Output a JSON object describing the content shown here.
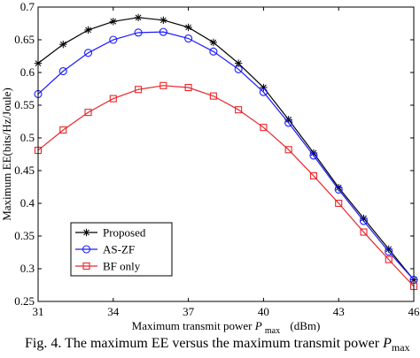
{
  "caption": {
    "prefix": "Fig. 4.",
    "text": "The maximum EE versus the maximum transmit power ",
    "symbol": "P",
    "subscript": "max"
  },
  "chart_data": {
    "type": "line",
    "title": "",
    "ylabel": "Maximum EE(bits/Hz/Joule)",
    "xlabel": {
      "text": "Maximum transmit power ",
      "symbol": "P",
      "subscript": "max",
      "unit": "(dBm)"
    },
    "xlim": [
      31,
      46
    ],
    "ylim": [
      0.25,
      0.7
    ],
    "xticks": [
      31,
      34,
      37,
      40,
      43,
      46
    ],
    "yticks": [
      0.25,
      0.3,
      0.35,
      0.4,
      0.45,
      0.5,
      0.55,
      0.6,
      0.65,
      0.7
    ],
    "ytick_labels": [
      "0.25",
      "0.3",
      "0.35",
      "0.4",
      "0.45",
      "0.5",
      "0.55",
      "0.6",
      "0.65",
      "0.7"
    ],
    "x": [
      31,
      32,
      33,
      34,
      35,
      36,
      37,
      38,
      39,
      40,
      41,
      42,
      43,
      44,
      45,
      46
    ],
    "legend_position": "lower-left",
    "series": [
      {
        "name": "Proposed",
        "color": "#000000",
        "marker": "asterisk",
        "values": [
          0.614,
          0.643,
          0.665,
          0.678,
          0.684,
          0.68,
          0.669,
          0.646,
          0.614,
          0.577,
          0.528,
          0.477,
          0.424,
          0.377,
          0.33,
          0.283
        ]
      },
      {
        "name": "AS-ZF",
        "color": "#1a1aff",
        "marker": "circle",
        "values": [
          0.567,
          0.602,
          0.63,
          0.65,
          0.661,
          0.662,
          0.652,
          0.632,
          0.605,
          0.57,
          0.523,
          0.473,
          0.421,
          0.373,
          0.326,
          0.283
        ]
      },
      {
        "name": "BF only",
        "color": "#e8262b",
        "marker": "square",
        "values": [
          0.481,
          0.512,
          0.539,
          0.56,
          0.574,
          0.58,
          0.577,
          0.564,
          0.543,
          0.516,
          0.482,
          0.442,
          0.4,
          0.356,
          0.314,
          0.273
        ]
      }
    ]
  }
}
